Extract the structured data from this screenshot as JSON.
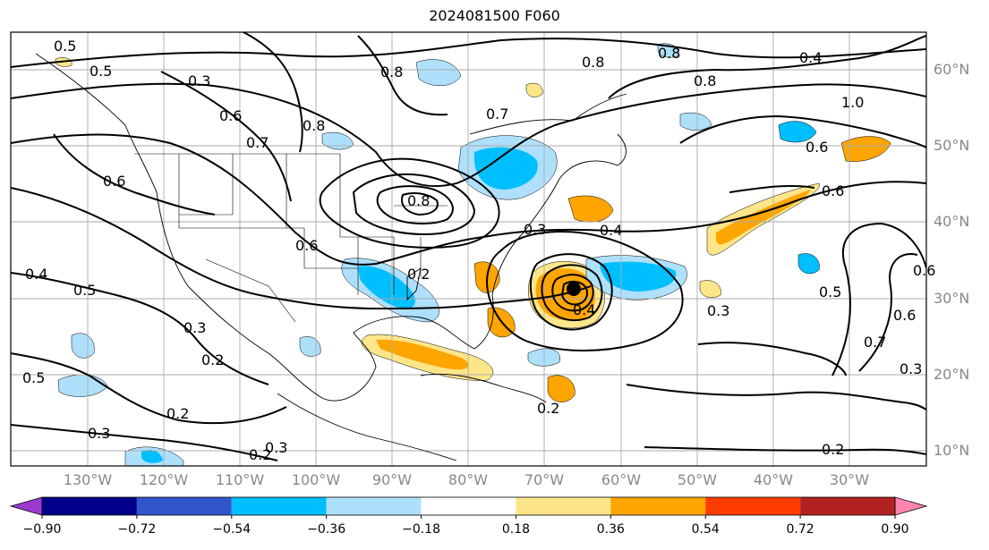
{
  "title": "2024081500 F060",
  "lat_labels": [
    "60°N",
    "50°N",
    "40°N",
    "30°N",
    "20°N",
    "10°N"
  ],
  "lon_labels": [
    "130°W",
    "120°W",
    "110°W",
    "100°W",
    "90°W",
    "80°W",
    "70°W",
    "60°W",
    "50°W",
    "40°W",
    "30°W"
  ],
  "colorbar": {
    "ticks": [
      "−0.90",
      "−0.72",
      "−0.54",
      "−0.36",
      "−0.18",
      "0.18",
      "0.36",
      "0.54",
      "0.72",
      "0.90"
    ],
    "colors": [
      "#9a3ad0",
      "#00008b",
      "#3355cc",
      "#00bfff",
      "#aee0fb",
      "#ffffff",
      "#fde68a",
      "#ffa500",
      "#ff3d00",
      "#b22222",
      "#ff85b0"
    ],
    "extend": "both"
  },
  "contour_labels": [
    "0.5",
    "0.5",
    "0.3",
    "0.6",
    "0.7",
    "0.8",
    "0.6",
    "0.4",
    "0.5",
    "0.3",
    "0.2",
    "0.5",
    "0.2",
    "0.3",
    "0.2",
    "0.3",
    "0.6",
    "0.8",
    "0.6",
    "0.2",
    "0.3",
    "0.4",
    "0.6",
    "0.6",
    "0.3",
    "0.7",
    "1.0",
    "0.8",
    "0.8",
    "0.4",
    "0.8",
    "0.8",
    "0.5",
    "0.6",
    "0.7",
    "0.3",
    "0.4",
    "0.2",
    "0.2"
  ],
  "fill_legend": {
    "warm": "#ffa500",
    "light_warm": "#fde68a",
    "cool": "#00bfff",
    "light_cool": "#aee0fb"
  }
}
